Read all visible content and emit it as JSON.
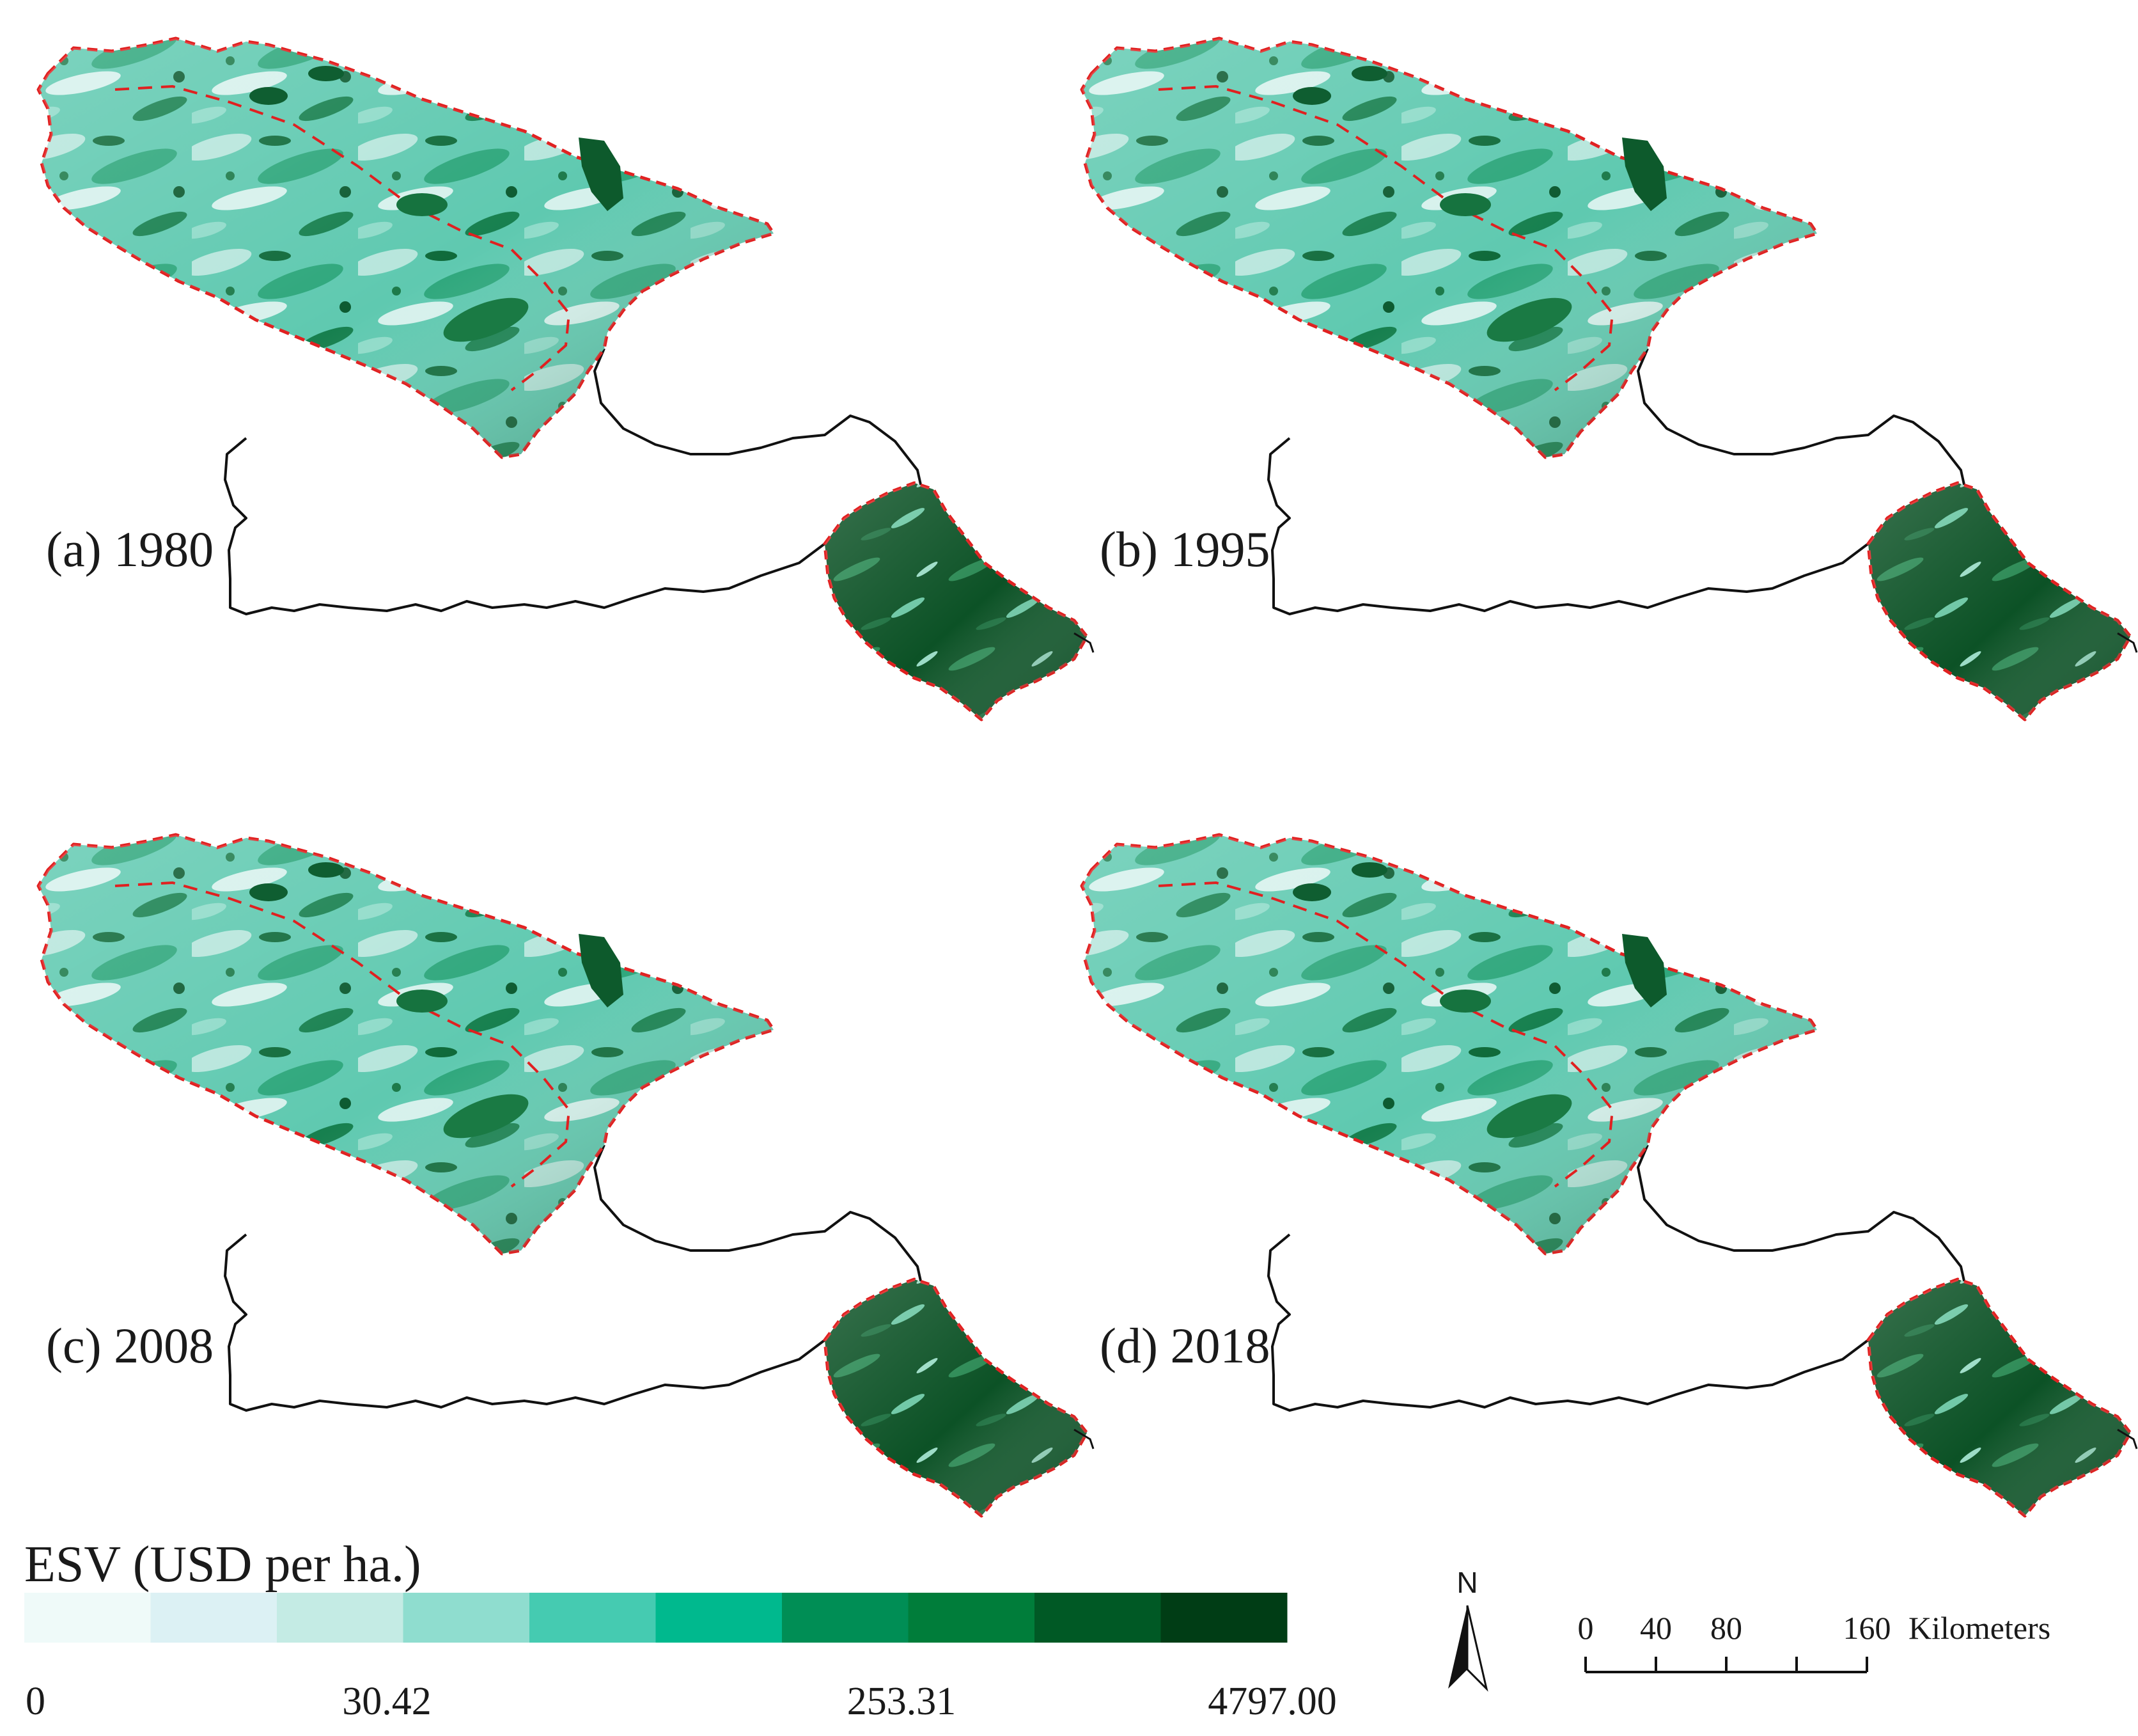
{
  "panels": [
    {
      "label": "(a) 1980",
      "variant": 0
    },
    {
      "label": "(b) 1995",
      "variant": 1
    },
    {
      "label": "(c) 2008",
      "variant": 2
    },
    {
      "label": "(d) 2018",
      "variant": 3
    }
  ],
  "legend": {
    "title": "ESV (USD per ha.)",
    "colors": [
      "#effaf9",
      "#dcf1f4",
      "#c4ebe4",
      "#8fddcf",
      "#45cbb1",
      "#00b98e",
      "#008e55",
      "#007d3a",
      "#005925",
      "#003d15"
    ],
    "tick_labels": [
      "0",
      "30.42",
      "253.31",
      "4797.00"
    ]
  },
  "north_arrow": {
    "label": "N",
    "icon": "north-arrow-icon"
  },
  "scale_bar": {
    "tick_labels": [
      "0",
      "40",
      "80",
      "160"
    ],
    "unit": "Kilometers"
  },
  "colors": {
    "boundary_red": "#e02020",
    "outline_black": "#111111",
    "forest_dark": "#0b5a2a"
  }
}
